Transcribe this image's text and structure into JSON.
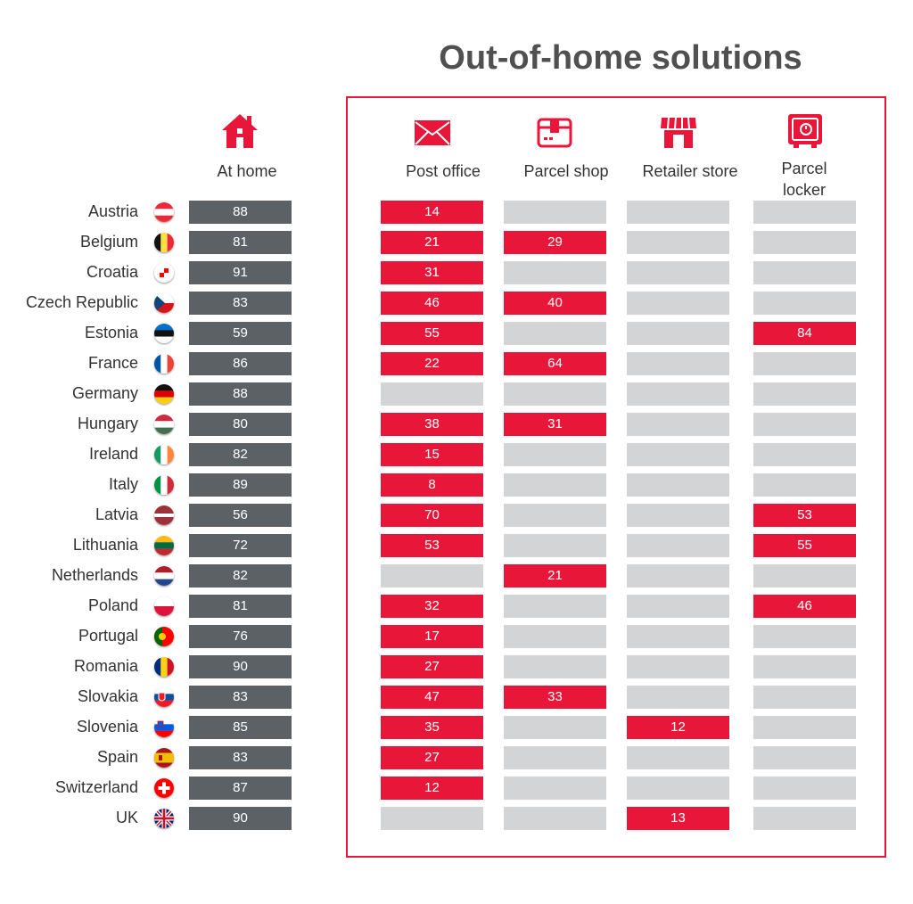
{
  "chart_data": {
    "type": "table",
    "title": "Out-of-home solutions",
    "columns": [
      {
        "key": "at_home",
        "label": "At home",
        "icon": "house-icon"
      },
      {
        "key": "post_office",
        "label": "Post office",
        "icon": "envelope-icon"
      },
      {
        "key": "parcel_shop",
        "label": "Parcel shop",
        "icon": "parcel-box-icon"
      },
      {
        "key": "retailer_store",
        "label": "Retailer store",
        "icon": "storefront-icon"
      },
      {
        "key": "parcel_locker",
        "label": "Parcel locker",
        "icon": "safe-locker-icon"
      }
    ],
    "rows": [
      {
        "country": "Austria",
        "flag": "austria-flag-icon",
        "at_home": 88,
        "post_office": 14,
        "parcel_shop": null,
        "retailer_store": null,
        "parcel_locker": null
      },
      {
        "country": "Belgium",
        "flag": "belgium-flag-icon",
        "at_home": 81,
        "post_office": 21,
        "parcel_shop": 29,
        "retailer_store": null,
        "parcel_locker": null
      },
      {
        "country": "Croatia",
        "flag": "croatia-flag-icon",
        "at_home": 91,
        "post_office": 31,
        "parcel_shop": null,
        "retailer_store": null,
        "parcel_locker": null
      },
      {
        "country": "Czech Republic",
        "flag": "czech-flag-icon",
        "at_home": 83,
        "post_office": 46,
        "parcel_shop": 40,
        "retailer_store": null,
        "parcel_locker": null
      },
      {
        "country": "Estonia",
        "flag": "estonia-flag-icon",
        "at_home": 59,
        "post_office": 55,
        "parcel_shop": null,
        "retailer_store": null,
        "parcel_locker": 84
      },
      {
        "country": "France",
        "flag": "france-flag-icon",
        "at_home": 86,
        "post_office": 22,
        "parcel_shop": 64,
        "retailer_store": null,
        "parcel_locker": null
      },
      {
        "country": "Germany",
        "flag": "germany-flag-icon",
        "at_home": 88,
        "post_office": null,
        "parcel_shop": null,
        "retailer_store": null,
        "parcel_locker": null
      },
      {
        "country": "Hungary",
        "flag": "hungary-flag-icon",
        "at_home": 80,
        "post_office": 38,
        "parcel_shop": 31,
        "retailer_store": null,
        "parcel_locker": null
      },
      {
        "country": "Ireland",
        "flag": "ireland-flag-icon",
        "at_home": 82,
        "post_office": 15,
        "parcel_shop": null,
        "retailer_store": null,
        "parcel_locker": null
      },
      {
        "country": "Italy",
        "flag": "italy-flag-icon",
        "at_home": 89,
        "post_office": 8,
        "parcel_shop": null,
        "retailer_store": null,
        "parcel_locker": null
      },
      {
        "country": "Latvia",
        "flag": "latvia-flag-icon",
        "at_home": 56,
        "post_office": 70,
        "parcel_shop": null,
        "retailer_store": null,
        "parcel_locker": 53
      },
      {
        "country": "Lithuania",
        "flag": "lithuania-flag-icon",
        "at_home": 72,
        "post_office": 53,
        "parcel_shop": null,
        "retailer_store": null,
        "parcel_locker": 55
      },
      {
        "country": "Netherlands",
        "flag": "netherlands-flag-icon",
        "at_home": 82,
        "post_office": null,
        "parcel_shop": 21,
        "retailer_store": null,
        "parcel_locker": null
      },
      {
        "country": "Poland",
        "flag": "poland-flag-icon",
        "at_home": 81,
        "post_office": 32,
        "parcel_shop": null,
        "retailer_store": null,
        "parcel_locker": 46
      },
      {
        "country": "Portugal",
        "flag": "portugal-flag-icon",
        "at_home": 76,
        "post_office": 17,
        "parcel_shop": null,
        "retailer_store": null,
        "parcel_locker": null
      },
      {
        "country": "Romania",
        "flag": "romania-flag-icon",
        "at_home": 90,
        "post_office": 27,
        "parcel_shop": null,
        "retailer_store": null,
        "parcel_locker": null
      },
      {
        "country": "Slovakia",
        "flag": "slovakia-flag-icon",
        "at_home": 83,
        "post_office": 47,
        "parcel_shop": 33,
        "retailer_store": null,
        "parcel_locker": null
      },
      {
        "country": "Slovenia",
        "flag": "slovenia-flag-icon",
        "at_home": 85,
        "post_office": 35,
        "parcel_shop": null,
        "retailer_store": 12,
        "parcel_locker": null
      },
      {
        "country": "Spain",
        "flag": "spain-flag-icon",
        "at_home": 83,
        "post_office": 27,
        "parcel_shop": null,
        "retailer_store": null,
        "parcel_locker": null
      },
      {
        "country": "Switzerland",
        "flag": "switzerland-flag-icon",
        "at_home": 87,
        "post_office": 12,
        "parcel_shop": null,
        "retailer_store": null,
        "parcel_locker": null
      },
      {
        "country": "UK",
        "flag": "uk-flag-icon",
        "at_home": 90,
        "post_office": null,
        "parcel_shop": null,
        "retailer_store": 13,
        "parcel_locker": null
      }
    ],
    "colors": {
      "at_home": "#5c6166",
      "highlight": "#e8173a",
      "empty": "#d3d4d6",
      "box_border": "#e8173a"
    }
  }
}
